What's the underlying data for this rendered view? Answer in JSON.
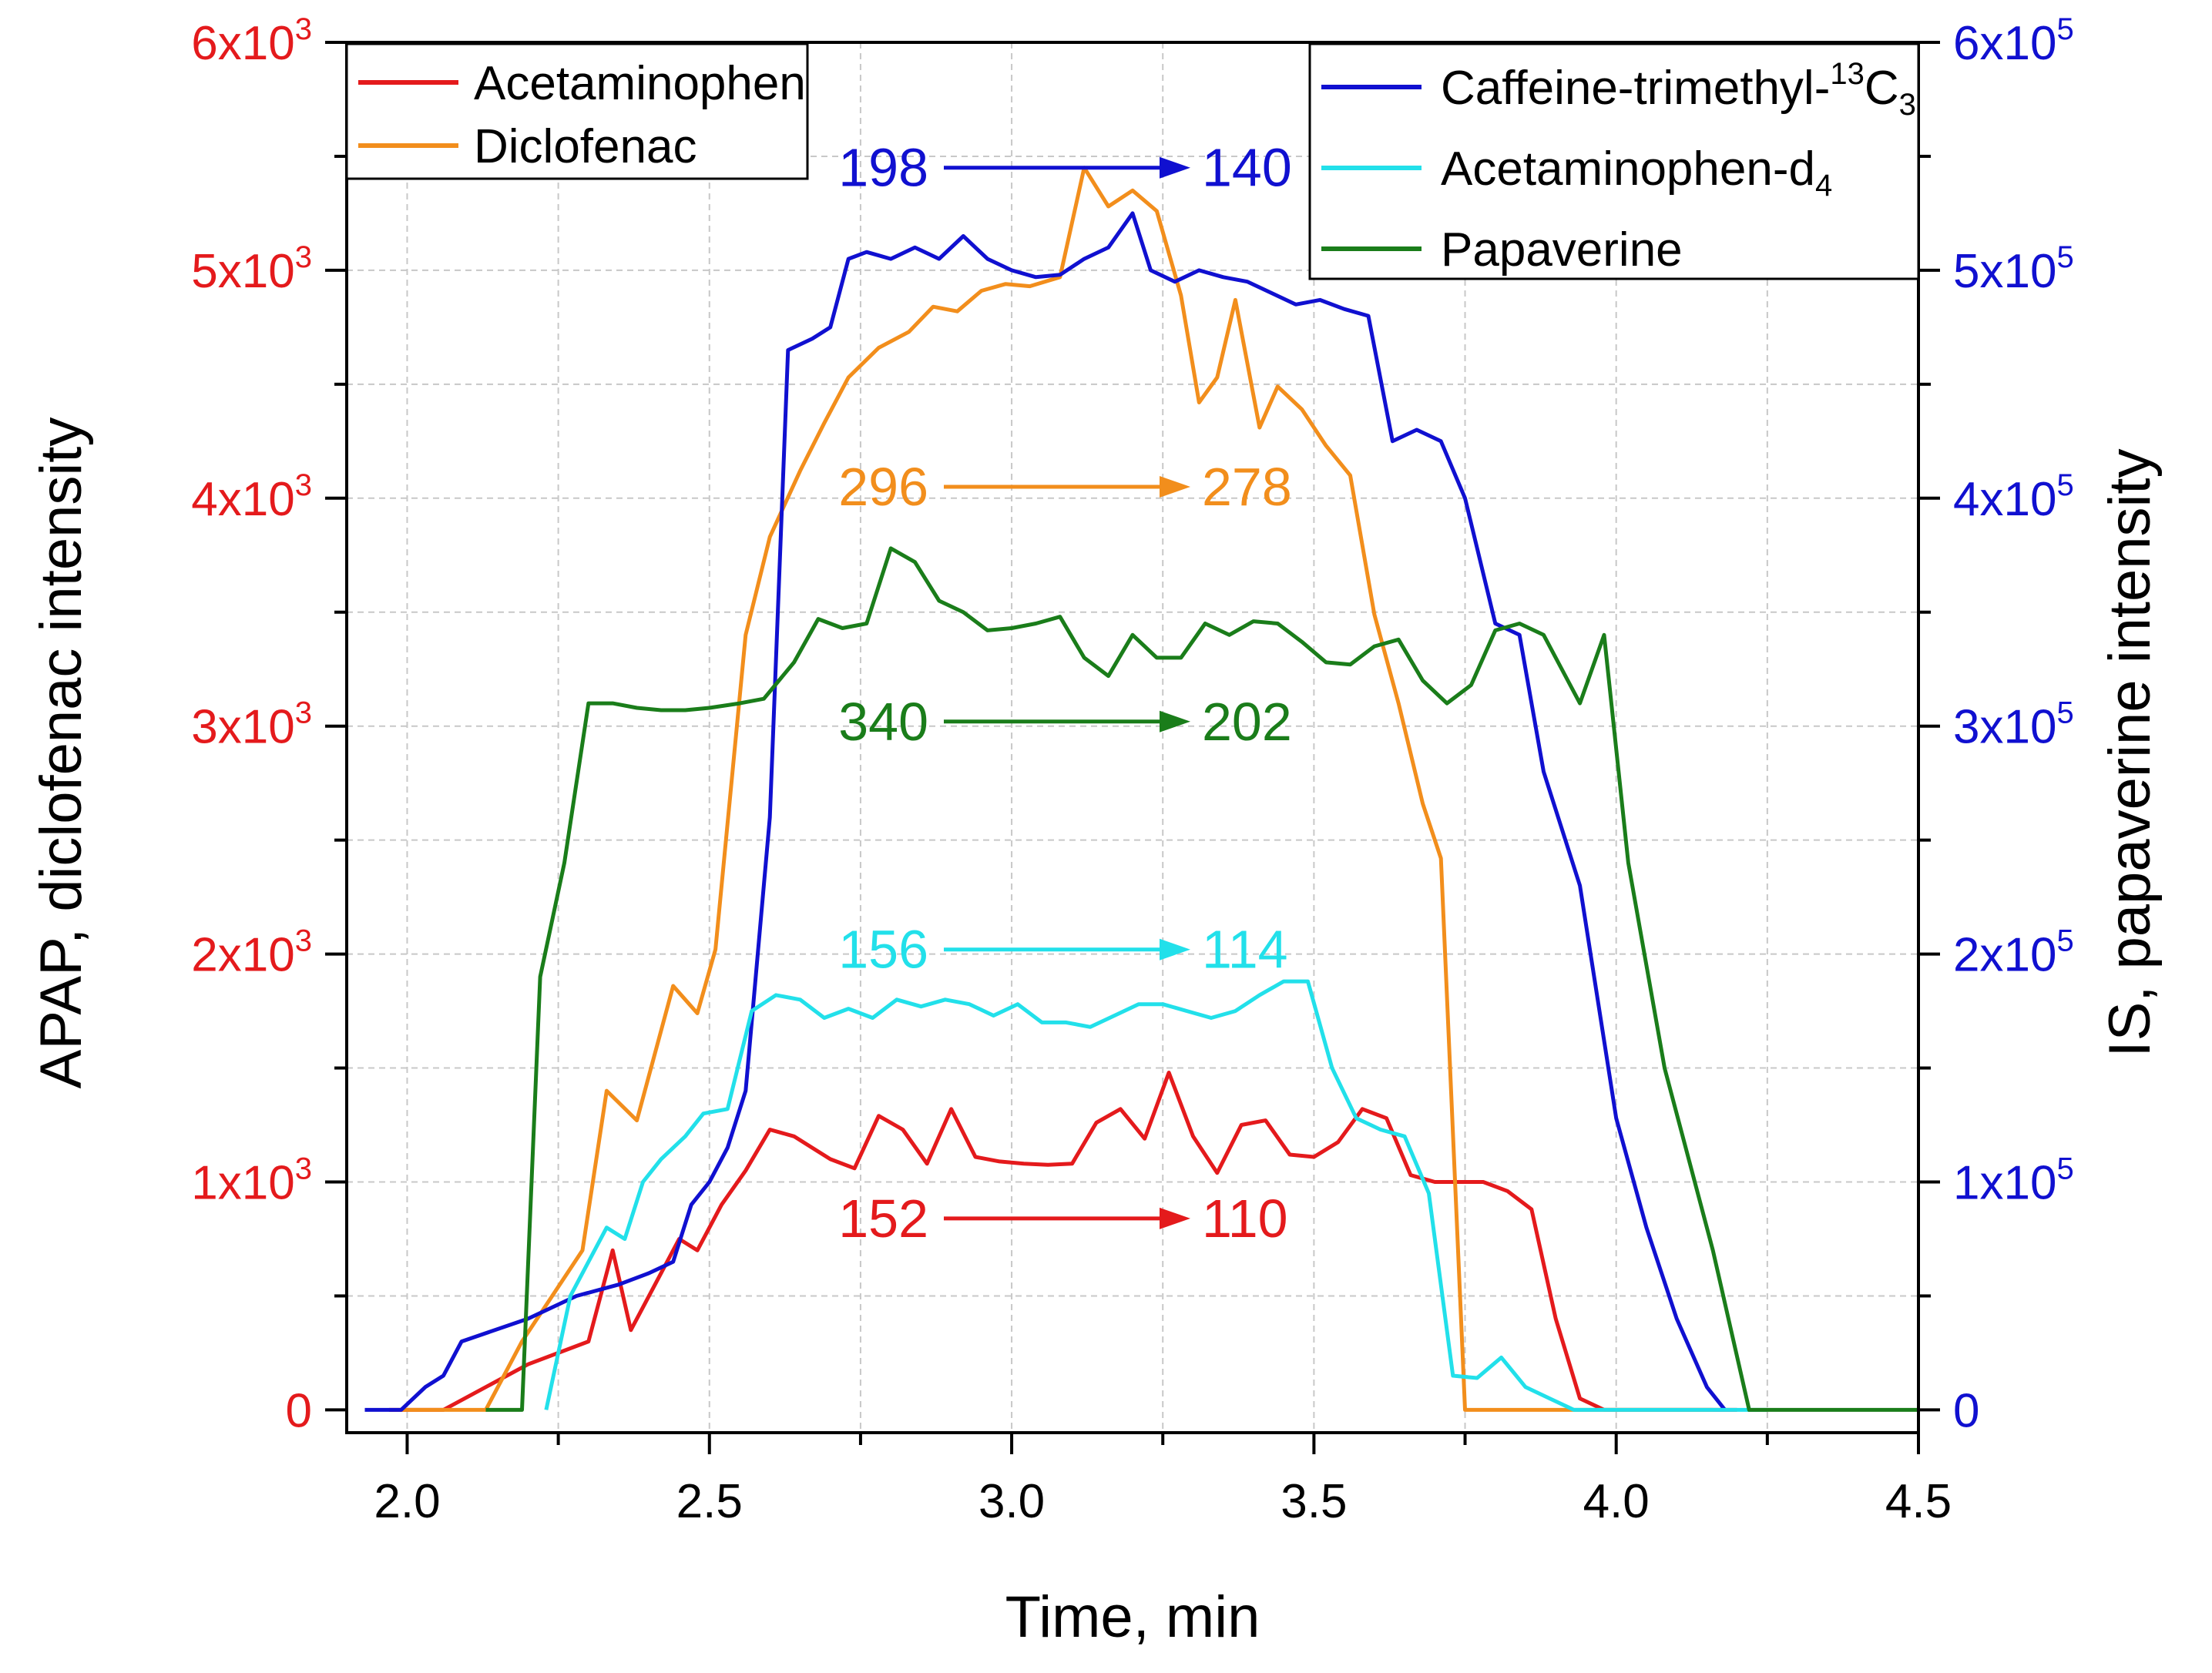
{
  "chart_data": {
    "type": "line",
    "xlabel": "Time, min",
    "ylabel_left": "APAP, diclofenac intensity",
    "ylabel_right": "IS, papaverine intensity",
    "xlim": [
      1.9,
      4.5
    ],
    "ylim_left": [
      -100,
      6000
    ],
    "ylim_right": [
      -10000,
      600000
    ],
    "grid": true,
    "x_ticks": [
      "2.0",
      "2.5",
      "3.0",
      "3.5",
      "4.0",
      "4.5"
    ],
    "y_left_ticks": [
      {
        "base": "0",
        "exp": ""
      },
      {
        "base": "1x10",
        "exp": "3"
      },
      {
        "base": "2x10",
        "exp": "3"
      },
      {
        "base": "3x10",
        "exp": "3"
      },
      {
        "base": "4x10",
        "exp": "3"
      },
      {
        "base": "5x10",
        "exp": "3"
      },
      {
        "base": "6x10",
        "exp": "3"
      }
    ],
    "y_right_ticks": [
      {
        "base": "0",
        "exp": ""
      },
      {
        "base": "1x10",
        "exp": "5"
      },
      {
        "base": "2x10",
        "exp": "5"
      },
      {
        "base": "3x10",
        "exp": "5"
      },
      {
        "base": "4x10",
        "exp": "5"
      },
      {
        "base": "5x10",
        "exp": "5"
      },
      {
        "base": "6x10",
        "exp": "5"
      }
    ],
    "legend_left": {
      "placement": "top-left",
      "entries": [
        {
          "label": "Acetaminophen",
          "color": "#e41a1c"
        },
        {
          "label": "Diclofenac",
          "color": "#f28e1c"
        }
      ]
    },
    "legend_right": {
      "placement": "top-right",
      "entries": [
        {
          "label": "Caffeine-trimethyl-",
          "sup": "13",
          "rest": "C",
          "sub": "3",
          "color": "#1010d0"
        },
        {
          "label": "Acetaminophen-d",
          "sub": "4",
          "color": "#22e0ea"
        },
        {
          "label": "Papaverine",
          "color": "#1a7d1a"
        }
      ]
    },
    "annotations": [
      {
        "from": "198",
        "to": "140",
        "color": "#1010d0",
        "y_axis": "left",
        "y": 5450
      },
      {
        "from": "296",
        "to": "278",
        "color": "#f28e1c",
        "y_axis": "left",
        "y": 4050
      },
      {
        "from": "340",
        "to": "202",
        "color": "#1a7d1a",
        "y_axis": "left",
        "y": 3020
      },
      {
        "from": "156",
        "to": "114",
        "color": "#22e0ea",
        "y_axis": "left",
        "y": 2020
      },
      {
        "from": "152",
        "to": "110",
        "color": "#e41a1c",
        "y_axis": "left",
        "y": 840
      }
    ],
    "series": [
      {
        "name": "Acetaminophen",
        "axis": "left",
        "color": "#e41a1c",
        "x": [
          1.97,
          2.06,
          2.2,
          2.3,
          2.34,
          2.37,
          2.42,
          2.45,
          2.48,
          2.52,
          2.56,
          2.6,
          2.64,
          2.67,
          2.7,
          2.74,
          2.78,
          2.82,
          2.86,
          2.9,
          2.94,
          2.98,
          3.02,
          3.06,
          3.1,
          3.14,
          3.18,
          3.22,
          3.26,
          3.3,
          3.34,
          3.38,
          3.42,
          3.46,
          3.5,
          3.54,
          3.58,
          3.62,
          3.66,
          3.7,
          3.74,
          3.78,
          3.82,
          3.86,
          3.9,
          3.94,
          3.98,
          4.02,
          4.06,
          4.1,
          4.13,
          4.16,
          4.2
        ],
        "y": [
          0,
          0,
          200,
          300,
          700,
          350,
          600,
          750,
          700,
          900,
          1050,
          1230,
          1200,
          1150,
          1100,
          1060,
          1290,
          1230,
          1080,
          1320,
          1110,
          1090,
          1080,
          1075,
          1080,
          1260,
          1320,
          1190,
          1480,
          1200,
          1040,
          1250,
          1270,
          1120,
          1110,
          1175,
          1320,
          1280,
          1030,
          1000,
          1000,
          1000,
          960,
          880,
          400,
          50,
          0,
          0,
          0,
          0,
          0,
          0,
          0
        ]
      },
      {
        "name": "Diclofenac",
        "axis": "left",
        "color": "#f28e1c",
        "x": [
          1.99,
          2.03,
          2.13,
          2.19,
          2.29,
          2.33,
          2.38,
          2.44,
          2.48,
          2.51,
          2.56,
          2.6,
          2.65,
          2.69,
          2.73,
          2.78,
          2.83,
          2.87,
          2.91,
          2.95,
          2.99,
          3.03,
          3.08,
          3.12,
          3.16,
          3.2,
          3.24,
          3.28,
          3.31,
          3.34,
          3.37,
          3.41,
          3.44,
          3.48,
          3.52,
          3.56,
          3.6,
          3.64,
          3.68,
          3.71,
          3.75,
          3.78,
          3.82,
          3.86,
          3.9,
          3.96,
          4.0,
          4.02,
          4.08,
          4.12,
          4.16
        ],
        "y": [
          0,
          0,
          0,
          300,
          700,
          1400,
          1270,
          1860,
          1740,
          2020,
          3400,
          3830,
          4120,
          4330,
          4530,
          4660,
          4730,
          4840,
          4820,
          4910,
          4940,
          4930,
          4970,
          5450,
          5280,
          5350,
          5260,
          4890,
          4420,
          4530,
          4870,
          4310,
          4490,
          4390,
          4230,
          4100,
          3490,
          3100,
          2660,
          2420,
          0,
          0,
          0,
          0,
          0,
          0,
          0,
          0,
          0,
          0,
          0
        ]
      },
      {
        "name": "Caffeine-trimethyl-13C3",
        "axis": "right",
        "color": "#1010d0",
        "x": [
          1.93,
          1.96,
          1.99,
          2.03,
          2.06,
          2.09,
          2.2,
          2.28,
          2.35,
          2.4,
          2.44,
          2.47,
          2.5,
          2.53,
          2.56,
          2.6,
          2.63,
          2.67,
          2.7,
          2.73,
          2.76,
          2.8,
          2.84,
          2.88,
          2.92,
          2.96,
          3.0,
          3.04,
          3.08,
          3.12,
          3.16,
          3.2,
          3.23,
          3.27,
          3.31,
          3.35,
          3.39,
          3.43,
          3.47,
          3.51,
          3.55,
          3.59,
          3.63,
          3.67,
          3.71,
          3.75,
          3.8,
          3.84,
          3.88,
          3.94,
          4.0,
          4.05,
          4.1,
          4.15,
          4.18
        ],
        "y": [
          0,
          0,
          0,
          10000,
          15000,
          30000,
          40000,
          50000,
          55000,
          60000,
          65000,
          90000,
          100000,
          115000,
          140000,
          260000,
          465000,
          470000,
          475000,
          505000,
          508000,
          505000,
          510000,
          505000,
          515000,
          505000,
          500000,
          497000,
          498000,
          505000,
          510000,
          525000,
          500000,
          495000,
          500000,
          497000,
          495000,
          490000,
          485000,
          487000,
          483000,
          480000,
          425000,
          430000,
          425000,
          400000,
          345000,
          340000,
          280000,
          230000,
          128000,
          80000,
          40000,
          10000,
          0
        ]
      },
      {
        "name": "Acetaminophen-d4",
        "axis": "right",
        "color": "#22e0ea",
        "x": [
          2.23,
          2.27,
          2.33,
          2.36,
          2.39,
          2.42,
          2.46,
          2.49,
          2.53,
          2.57,
          2.61,
          2.65,
          2.69,
          2.73,
          2.77,
          2.81,
          2.85,
          2.89,
          2.93,
          2.97,
          3.01,
          3.05,
          3.09,
          3.13,
          3.17,
          3.21,
          3.25,
          3.29,
          3.33,
          3.37,
          3.41,
          3.45,
          3.49,
          3.53,
          3.57,
          3.61,
          3.65,
          3.69,
          3.73,
          3.77,
          3.81,
          3.85,
          3.89,
          3.93,
          3.97,
          4.01,
          4.05,
          4.09,
          4.13,
          4.17,
          4.21,
          4.25
        ],
        "y": [
          0,
          50000,
          80000,
          75000,
          100000,
          110000,
          120000,
          130000,
          132000,
          175000,
          182000,
          180000,
          172000,
          176000,
          172000,
          180000,
          177000,
          180000,
          178000,
          173000,
          178000,
          170000,
          170000,
          168000,
          173000,
          178000,
          178000,
          175000,
          172000,
          175000,
          182000,
          188000,
          188000,
          150000,
          128000,
          123000,
          120000,
          95000,
          15000,
          14000,
          23000,
          10000,
          5000,
          0,
          0,
          0,
          0,
          0,
          0,
          0,
          0,
          0
        ]
      },
      {
        "name": "Papaverine",
        "axis": "right",
        "color": "#1a7d1a",
        "x": [
          2.13,
          2.19,
          2.22,
          2.26,
          2.3,
          2.34,
          2.38,
          2.42,
          2.46,
          2.5,
          2.55,
          2.59,
          2.64,
          2.68,
          2.72,
          2.76,
          2.8,
          2.84,
          2.88,
          2.92,
          2.96,
          3.0,
          3.04,
          3.08,
          3.12,
          3.16,
          3.2,
          3.24,
          3.28,
          3.32,
          3.36,
          3.4,
          3.44,
          3.48,
          3.52,
          3.56,
          3.6,
          3.64,
          3.68,
          3.72,
          3.76,
          3.8,
          3.84,
          3.88,
          3.92,
          3.94,
          3.98,
          4.02,
          4.08,
          4.16,
          4.22,
          4.28,
          4.5
        ],
        "y": [
          0,
          0,
          190000,
          240000,
          310000,
          310000,
          308000,
          307000,
          307000,
          308000,
          310000,
          312000,
          328000,
          347000,
          343000,
          345000,
          378000,
          372000,
          355000,
          350000,
          342000,
          343000,
          345000,
          348000,
          330000,
          322000,
          340000,
          330000,
          330000,
          345000,
          340000,
          346000,
          345000,
          337000,
          328000,
          327000,
          335000,
          338000,
          320000,
          310000,
          318000,
          342000,
          345000,
          340000,
          320000,
          310000,
          340000,
          240000,
          150000,
          70000,
          0,
          0,
          0
        ]
      }
    ]
  }
}
